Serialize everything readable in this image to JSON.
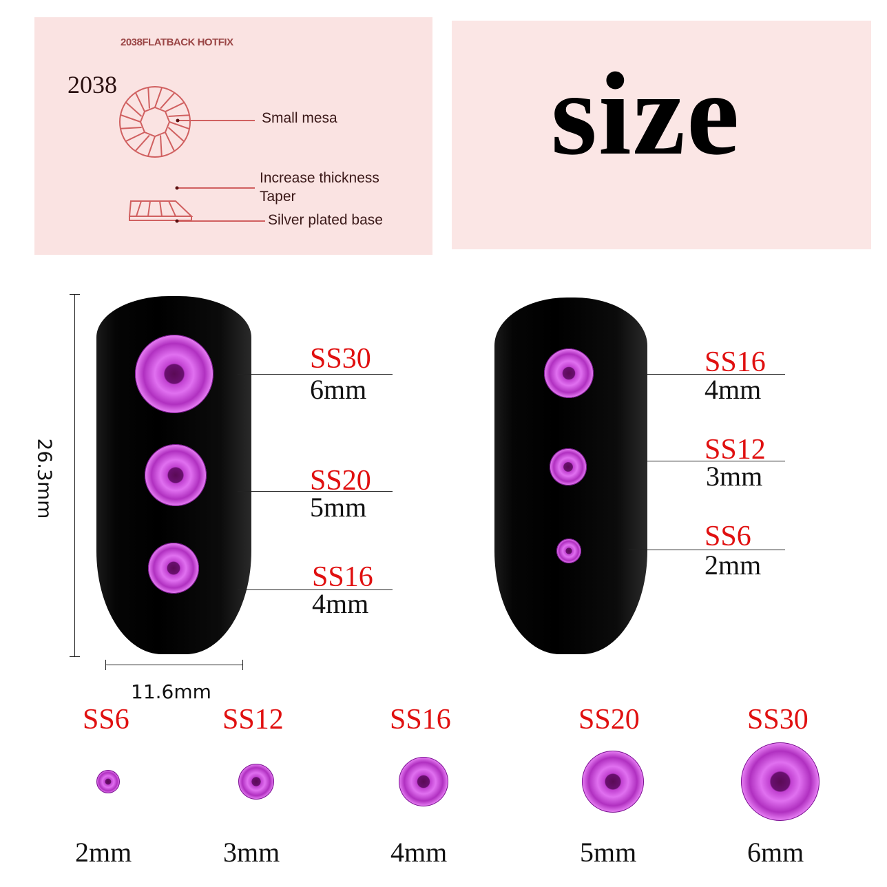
{
  "diagram": {
    "subtitle": "2038FLATBACK HOTFIX",
    "model": "2038",
    "labels": {
      "small_mesa": "Small mesa",
      "increase_thickness": "Increase thickness",
      "taper": "Taper",
      "silver_plated_base": "Silver plated base"
    },
    "line_color": "#d06060"
  },
  "heading": "size",
  "dimensions": {
    "height": "26.3mm",
    "width": "11.6mm"
  },
  "left_nail": [
    {
      "ss": "SS30",
      "mm": "6mm"
    },
    {
      "ss": "SS20",
      "mm": "5mm"
    },
    {
      "ss": "SS16",
      "mm": "4mm"
    }
  ],
  "right_nail": [
    {
      "ss": "SS16",
      "mm": "4mm"
    },
    {
      "ss": "SS12",
      "mm": "3mm"
    },
    {
      "ss": "SS6",
      "mm": "2mm"
    }
  ],
  "bottom_row": [
    {
      "ss": "SS6",
      "mm": "2mm"
    },
    {
      "ss": "SS12",
      "mm": "3mm"
    },
    {
      "ss": "SS16",
      "mm": "4mm"
    },
    {
      "ss": "SS20",
      "mm": "5mm"
    },
    {
      "ss": "SS30",
      "mm": "6mm"
    }
  ],
  "colors": {
    "ss_label": "#e01010",
    "gem": "#c040d0",
    "panel": "#fae3e2"
  }
}
